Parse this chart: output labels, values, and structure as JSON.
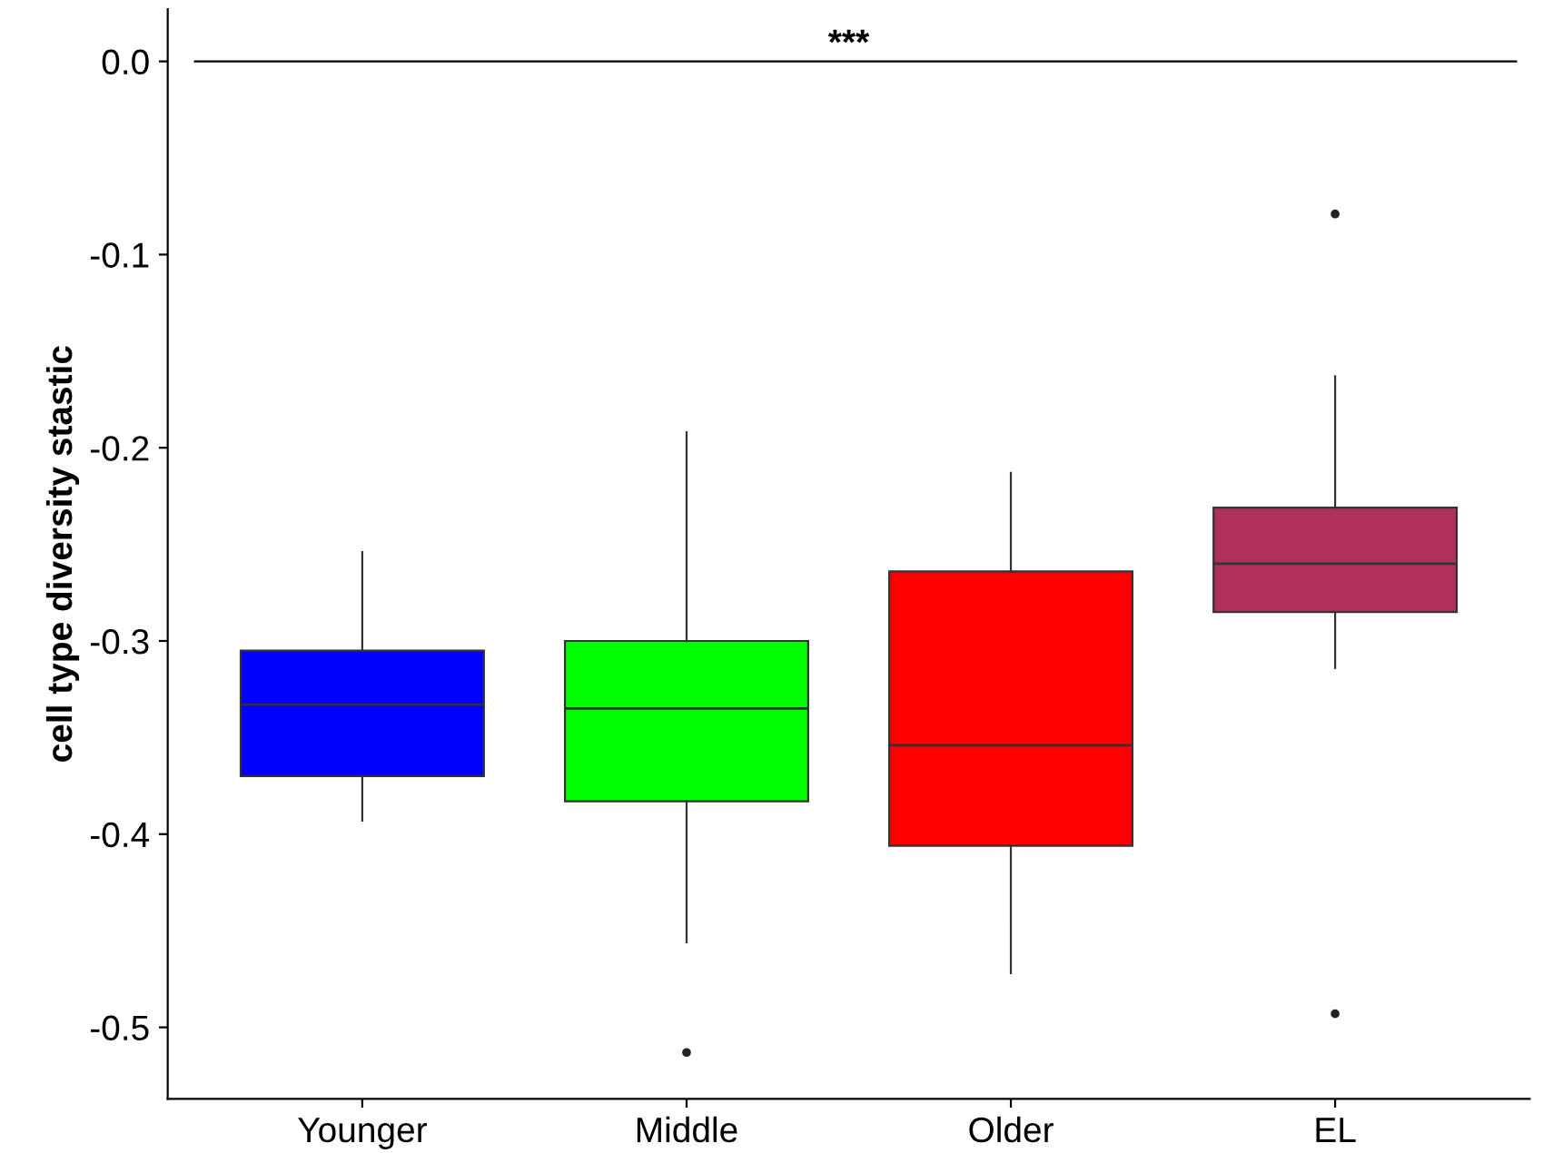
{
  "chart_data": {
    "type": "box",
    "ylabel": "cell type diversity stastic",
    "categories": [
      "Younger",
      "Middle",
      "Older",
      "EL"
    ],
    "colors": [
      "#0000ff",
      "#00ff00",
      "#ff0000",
      "#b0305c"
    ],
    "boxes": [
      {
        "low": -0.393,
        "q1": -0.37,
        "median": -0.333,
        "q3": -0.305,
        "high": -0.254
      },
      {
        "low": -0.456,
        "q1": -0.383,
        "median": -0.335,
        "q3": -0.3,
        "high": -0.192,
        "outliers": [
          -0.513
        ]
      },
      {
        "low": -0.472,
        "q1": -0.406,
        "median": -0.354,
        "q3": -0.264,
        "high": -0.213
      },
      {
        "low": -0.314,
        "q1": -0.285,
        "median": -0.26,
        "q3": -0.231,
        "high": -0.163,
        "outliers": [
          -0.079,
          -0.493
        ]
      }
    ],
    "ylim": [
      -0.537,
      0.027
    ],
    "yticks": [
      -0.5,
      -0.4,
      -0.3,
      -0.2,
      -0.1,
      {
        "value": 0,
        "label": "0.0"
      }
    ],
    "ref_lines": [
      {
        "axis": "y",
        "value": 0,
        "label": "***",
        "color": "#000000"
      }
    ],
    "grid": false,
    "legend": false
  }
}
